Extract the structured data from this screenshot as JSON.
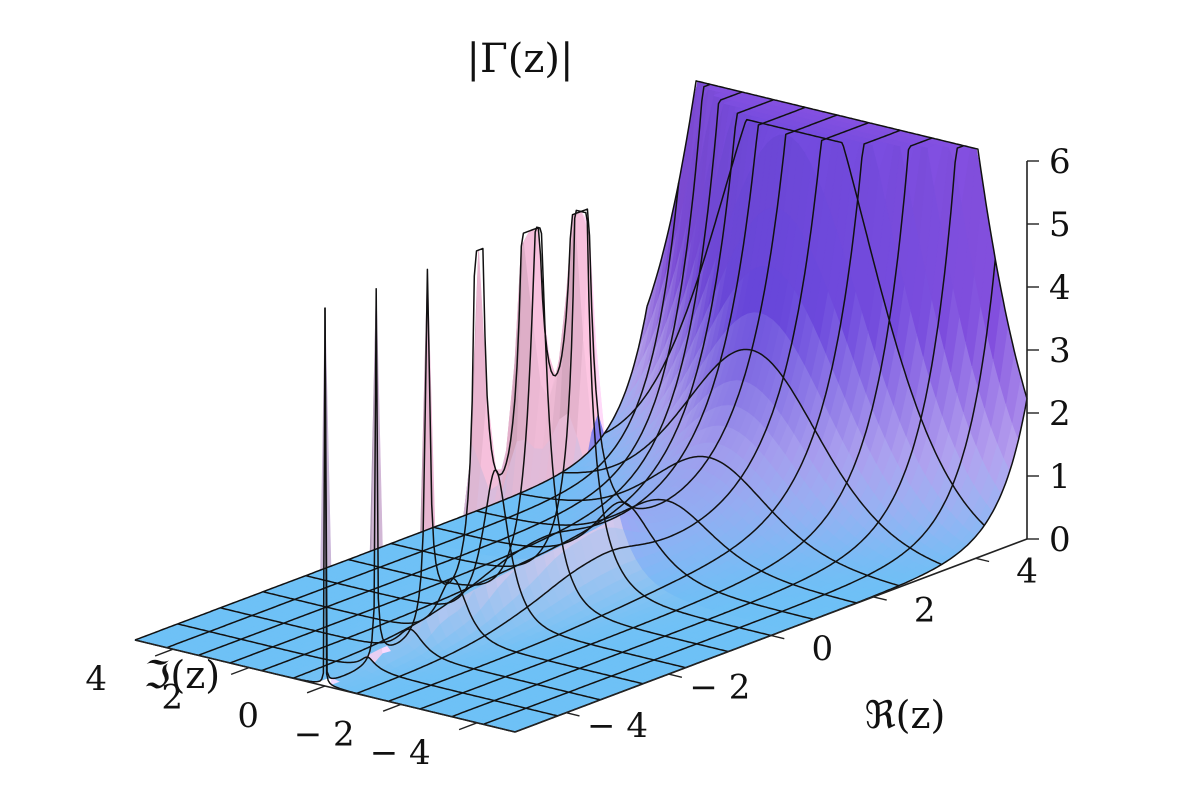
{
  "chart_data": {
    "type": "surface3d",
    "title": "|Γ(z)|",
    "function": "abs(Gamma(z))",
    "xlabel": "ℜ(z)",
    "ylabel": "ℑ(z)",
    "zlabel": "",
    "xlim": [
      -5,
      5
    ],
    "ylim": [
      -5,
      5
    ],
    "zlim": [
      0,
      6
    ],
    "x_ticks": [
      {
        "value": -4,
        "label": "− 4"
      },
      {
        "value": -2,
        "label": "− 2"
      },
      {
        "value": 0,
        "label": "0"
      },
      {
        "value": 2,
        "label": "2"
      },
      {
        "value": 4,
        "label": "4"
      }
    ],
    "y_ticks": [
      {
        "value": -4,
        "label": "− 4"
      },
      {
        "value": -2,
        "label": "− 2"
      },
      {
        "value": 0,
        "label": "0"
      },
      {
        "value": 2,
        "label": "2"
      },
      {
        "value": 4,
        "label": "4"
      }
    ],
    "z_ticks": [
      {
        "value": 0,
        "label": "0"
      },
      {
        "value": 1,
        "label": "1"
      },
      {
        "value": 2,
        "label": "2"
      },
      {
        "value": 3,
        "label": "3"
      },
      {
        "value": 4,
        "label": "4"
      },
      {
        "value": 5,
        "label": "5"
      },
      {
        "value": 6,
        "label": "6"
      }
    ],
    "poles_at_x": [
      0,
      -1,
      -2,
      -3,
      -4
    ],
    "mesh_lines": 13,
    "colors": {
      "flat": "#6ec1f6",
      "peak": "#f9c3df",
      "ridge": "#4b3fdc",
      "high": "#8550e0"
    }
  }
}
